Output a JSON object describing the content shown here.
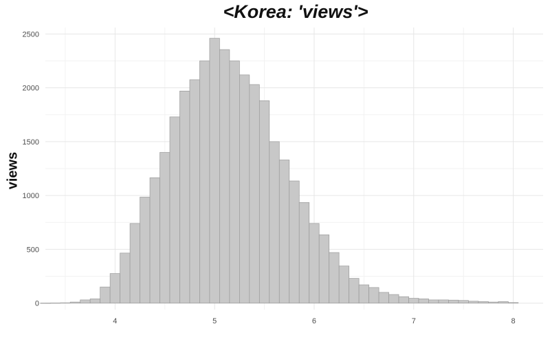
{
  "chart_data": {
    "type": "bar",
    "title": "<Korea: 'views'>",
    "xlabel": "",
    "ylabel": "views",
    "xlim": [
      3.3,
      8.3
    ],
    "ylim": [
      -60,
      2560
    ],
    "x_ticks": [
      4,
      5,
      6,
      7,
      8
    ],
    "y_ticks": [
      0,
      500,
      1000,
      1500,
      2000,
      2500
    ],
    "x_tick_labels": [
      "4",
      "5",
      "6",
      "7",
      "8"
    ],
    "y_tick_labels": [
      "0",
      "500",
      "1000",
      "1500",
      "2000",
      "2500"
    ],
    "grid": true,
    "legend": "none",
    "colors": {
      "bar_fill": "#c8c8c8",
      "bar_stroke": "#9a9a9a",
      "grid": "#e6e6e6"
    },
    "bin_width": 0.1,
    "bin_starts": [
      3.25,
      3.35,
      3.45,
      3.55,
      3.65,
      3.75,
      3.85,
      3.95,
      4.05,
      4.15,
      4.25,
      4.35,
      4.45,
      4.55,
      4.65,
      4.75,
      4.85,
      4.95,
      5.05,
      5.15,
      5.25,
      5.35,
      5.45,
      5.55,
      5.65,
      5.75,
      5.85,
      5.95,
      6.05,
      6.15,
      6.25,
      6.35,
      6.45,
      6.55,
      6.65,
      6.75,
      6.85,
      6.95,
      7.05,
      7.15,
      7.25,
      7.35,
      7.45,
      7.55,
      7.65,
      7.75,
      7.85,
      7.95
    ],
    "values": [
      1,
      2,
      3,
      10,
      30,
      40,
      150,
      275,
      465,
      740,
      985,
      1165,
      1400,
      1730,
      1970,
      2075,
      2250,
      2460,
      2355,
      2250,
      2120,
      2030,
      1880,
      1500,
      1330,
      1135,
      935,
      740,
      635,
      470,
      345,
      230,
      170,
      145,
      100,
      80,
      60,
      45,
      40,
      30,
      30,
      28,
      25,
      18,
      15,
      10,
      15,
      5
    ]
  }
}
